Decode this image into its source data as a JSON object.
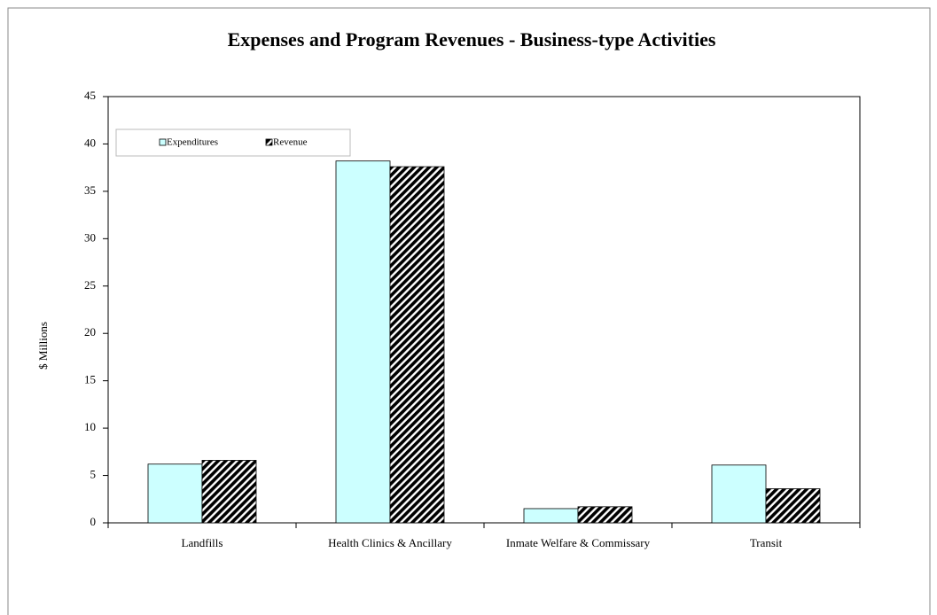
{
  "chart_data": {
    "type": "bar",
    "title": "Expenses and Program Revenues - Business-type Activities",
    "ylabel": "$ Millions",
    "categories": [
      "Landfills",
      "Health Clinics & Ancillary",
      "Inmate Welfare & Commissary",
      "Transit"
    ],
    "series": [
      {
        "name": "Expenditures",
        "color": "#ccffff",
        "values": [
          6.2,
          38.2,
          1.5,
          6.1
        ]
      },
      {
        "name": "Revenue",
        "color": "#000000",
        "values": [
          6.6,
          37.6,
          1.7,
          3.6
        ]
      }
    ],
    "ylim": [
      0,
      45
    ],
    "yticks": [
      0,
      5,
      10,
      15,
      20,
      25,
      30,
      35,
      40,
      45
    ],
    "grid": false,
    "legend": "upper left"
  }
}
